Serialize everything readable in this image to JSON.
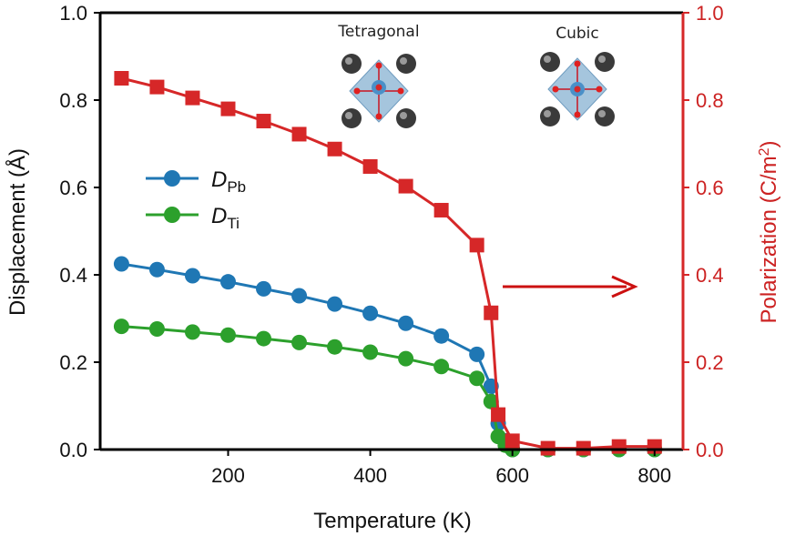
{
  "chart_data": {
    "type": "line",
    "xlabel": "Temperature (K)",
    "ylabel_left": "Displacement (Å)",
    "ylabel_right": "Polarization (C/m",
    "ylabel_right_sup": "2",
    "ylabel_right_close": ")",
    "xlim": [
      20,
      840
    ],
    "ylim_left": [
      0.0,
      1.0
    ],
    "ylim_right": [
      0.0,
      1.0
    ],
    "x_ticks": [
      200,
      400,
      600,
      800
    ],
    "x_tick_labels": [
      "200",
      "400",
      "600",
      "800"
    ],
    "y_ticks": [
      0.0,
      0.2,
      0.4,
      0.6,
      0.8,
      1.0
    ],
    "y_tick_labels": [
      "0.0",
      "0.2",
      "0.4",
      "0.6",
      "0.8",
      "1.0"
    ],
    "y_right_tick_labels": [
      "0.0",
      "0.2",
      "0.4",
      "0.6",
      "0.8",
      "1.0"
    ],
    "series": [
      {
        "name": "D_Pb",
        "label_main": "D",
        "label_sub": "Pb",
        "axis": "left",
        "color": "#1f77b4",
        "marker": "circle",
        "x": [
          50,
          100,
          150,
          200,
          250,
          300,
          350,
          400,
          450,
          500,
          550,
          570,
          580,
          590,
          600,
          650,
          700,
          750,
          800
        ],
        "y": [
          0.425,
          0.412,
          0.398,
          0.384,
          0.368,
          0.352,
          0.333,
          0.312,
          0.289,
          0.26,
          0.218,
          0.145,
          0.06,
          0.02,
          0.0,
          0.0,
          0.0,
          0.0,
          0.0
        ]
      },
      {
        "name": "D_Ti",
        "label_main": "D",
        "label_sub": "Ti",
        "axis": "left",
        "color": "#2ca02c",
        "marker": "circle",
        "x": [
          50,
          100,
          150,
          200,
          250,
          300,
          350,
          400,
          450,
          500,
          550,
          570,
          580,
          590,
          600,
          650,
          700,
          750,
          800
        ],
        "y": [
          0.282,
          0.276,
          0.269,
          0.262,
          0.254,
          0.245,
          0.235,
          0.223,
          0.208,
          0.19,
          0.163,
          0.11,
          0.03,
          0.01,
          0.0,
          0.0,
          0.0,
          0.0,
          0.0
        ]
      },
      {
        "name": "Polarization",
        "axis": "right",
        "color": "#d62728",
        "marker": "square",
        "x": [
          50,
          100,
          150,
          200,
          250,
          300,
          350,
          400,
          450,
          500,
          550,
          570,
          580,
          600,
          650,
          700,
          750,
          800
        ],
        "y": [
          0.85,
          0.83,
          0.805,
          0.78,
          0.752,
          0.722,
          0.688,
          0.648,
          0.603,
          0.548,
          0.468,
          0.313,
          0.08,
          0.02,
          0.003,
          0.003,
          0.007,
          0.007
        ]
      }
    ],
    "annotations": [
      {
        "text": "Tetragonal",
        "kind": "structure",
        "variant": "tetragonal"
      },
      {
        "text": "Cubic",
        "kind": "structure",
        "variant": "cubic"
      },
      {
        "kind": "arrow",
        "points_to": "right-axis",
        "color": "#cc1111"
      }
    ],
    "legend": {
      "placement": "center-left"
    },
    "grid": false
  }
}
